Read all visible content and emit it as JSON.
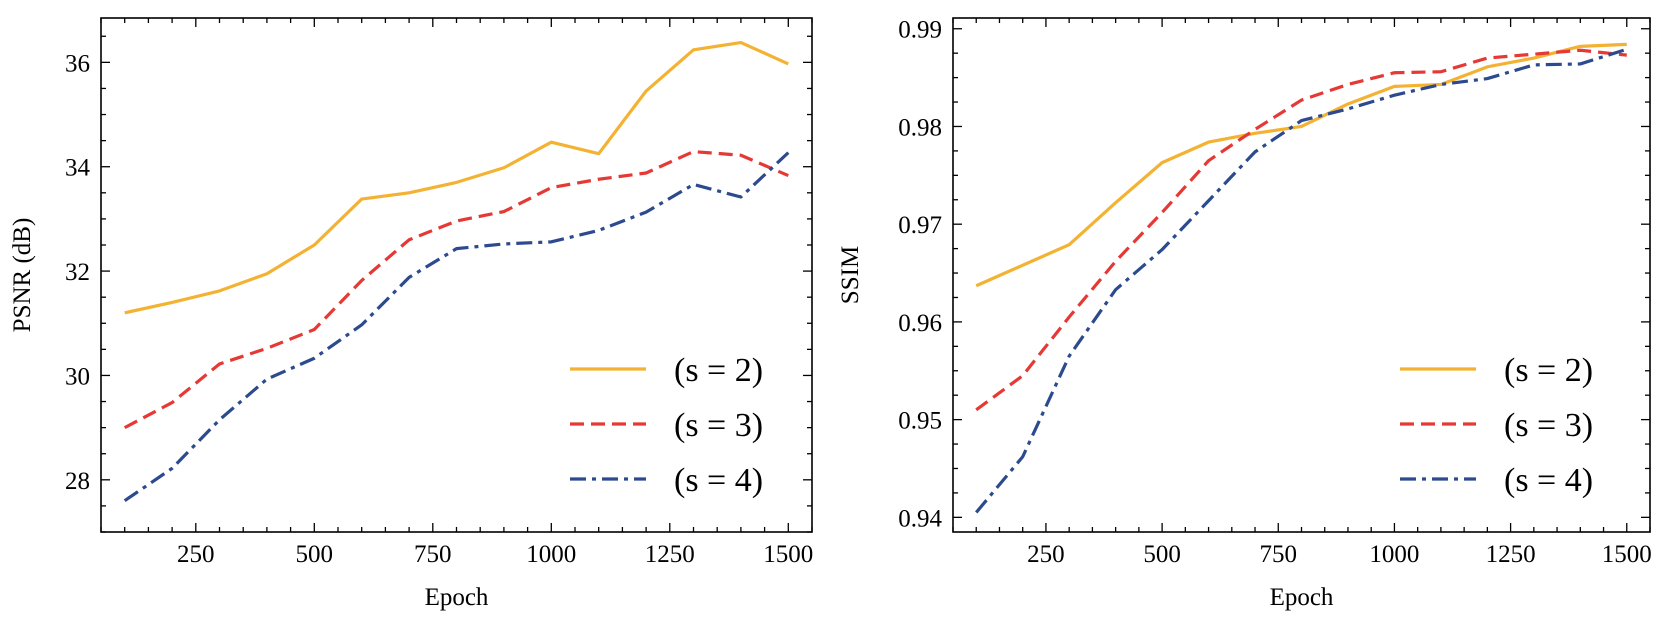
{
  "chart_data": [
    {
      "type": "line",
      "xlabel": "Epoch",
      "ylabel": "PSNR (dB)",
      "xlim": [
        50,
        1550
      ],
      "ylim": [
        27.0,
        36.85
      ],
      "xticks": [
        250,
        500,
        750,
        1000,
        1250,
        1500
      ],
      "yticks": [
        28,
        30,
        32,
        34,
        36
      ],
      "ytick_labels": [
        "28",
        "30",
        "32",
        "34",
        "36"
      ],
      "xtick_labels": [
        "250",
        "500",
        "750",
        "1000",
        "1250",
        "1500"
      ],
      "x": [
        100,
        200,
        300,
        400,
        500,
        600,
        700,
        800,
        900,
        1000,
        1100,
        1200,
        1300,
        1400,
        1500
      ],
      "legend_position": "lower-right",
      "series": [
        {
          "name": "(s = 2)",
          "color": "#F4B233",
          "dash": "solid",
          "values": [
            31.2,
            31.4,
            31.62,
            31.95,
            32.5,
            33.38,
            33.5,
            33.7,
            33.98,
            34.47,
            34.25,
            35.45,
            36.24,
            36.38,
            35.97
          ]
        },
        {
          "name": "(s = 3)",
          "color": "#E53935",
          "dash": "dashed",
          "values": [
            29.0,
            29.48,
            30.22,
            30.52,
            30.88,
            31.82,
            32.6,
            32.96,
            33.14,
            33.6,
            33.76,
            33.88,
            34.29,
            34.22,
            33.83
          ]
        },
        {
          "name": "(s = 4)",
          "color": "#2C4A8E",
          "dash": "dashdot",
          "values": [
            27.6,
            28.22,
            29.15,
            29.93,
            30.33,
            30.97,
            31.88,
            32.43,
            32.52,
            32.56,
            32.78,
            33.13,
            33.66,
            33.42,
            34.27
          ]
        }
      ]
    },
    {
      "type": "line",
      "xlabel": "Epoch",
      "ylabel": "SSIM",
      "xlim": [
        50,
        1550
      ],
      "ylim": [
        0.9385,
        0.9911
      ],
      "xticks": [
        250,
        500,
        750,
        1000,
        1250,
        1500
      ],
      "yticks": [
        0.94,
        0.95,
        0.96,
        0.97,
        0.98,
        0.99
      ],
      "ytick_labels": [
        "0.94",
        "0.95",
        "0.96",
        "0.97",
        "0.98",
        "0.99"
      ],
      "xtick_labels": [
        "250",
        "500",
        "750",
        "1000",
        "1250",
        "1500"
      ],
      "x": [
        100,
        200,
        300,
        400,
        500,
        600,
        700,
        800,
        900,
        1000,
        1100,
        1200,
        1300,
        1400,
        1500
      ],
      "legend_position": "lower-right",
      "series": [
        {
          "name": "(s = 2)",
          "color": "#F4B233",
          "dash": "solid",
          "values": [
            0.9637,
            0.9658,
            0.9679,
            0.9722,
            0.9763,
            0.9784,
            0.9793,
            0.98,
            0.9823,
            0.9841,
            0.9843,
            0.9861,
            0.987,
            0.9882,
            0.9884
          ]
        },
        {
          "name": "(s = 3)",
          "color": "#E53935",
          "dash": "dashed",
          "values": [
            0.951,
            0.9545,
            0.9605,
            0.9662,
            0.9712,
            0.9765,
            0.9797,
            0.9827,
            0.9843,
            0.9855,
            0.9856,
            0.987,
            0.9874,
            0.9878,
            0.9873
          ]
        },
        {
          "name": "(s = 4)",
          "color": "#2C4A8E",
          "dash": "dashdot",
          "values": [
            0.9405,
            0.9462,
            0.9565,
            0.9633,
            0.9674,
            0.9724,
            0.9774,
            0.9806,
            0.9818,
            0.9832,
            0.9843,
            0.9849,
            0.9863,
            0.9864,
            0.9879
          ]
        }
      ]
    }
  ]
}
